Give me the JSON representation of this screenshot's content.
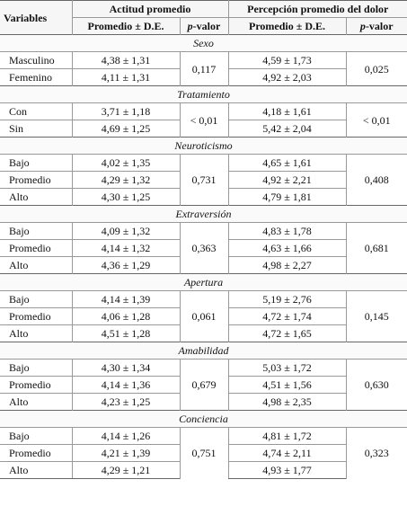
{
  "headers": {
    "variables": "Variables",
    "actitud": "Actitud promedio",
    "percepcion": "Percepción promedio del dolor",
    "promedio_de_1": "Promedio ± D.E.",
    "pvalor_1_p": "p",
    "pvalor_1_rest": "-valor",
    "promedio_de_2": "Promedio ± D.E.",
    "pvalor_2_p": "p",
    "pvalor_2_rest": "-valor"
  },
  "groups": [
    {
      "category": "Sexo",
      "p1": "0,117",
      "p2": "0,025",
      "rows": [
        {
          "label": "Masculino",
          "a": "4,38 ± 1,31",
          "b": "4,59 ± 1,73"
        },
        {
          "label": "Femenino",
          "a": "4,11 ± 1,31",
          "b": "4,92 ± 2,03"
        }
      ]
    },
    {
      "category": "Tratamiento",
      "p1": "< 0,01",
      "p2": "< 0,01",
      "rows": [
        {
          "label": "Con",
          "a": "3,71 ± 1,18",
          "b": "4,18 ± 1,61"
        },
        {
          "label": "Sin",
          "a": "4,69 ± 1,25",
          "b": "5,42 ± 2,04"
        }
      ]
    },
    {
      "category": "Neuroticismo",
      "p1": "0,731",
      "p2": "0,408",
      "rows": [
        {
          "label": "Bajo",
          "a": "4,02 ± 1,35",
          "b": "4,65 ± 1,61"
        },
        {
          "label": "Promedio",
          "a": "4,29 ± 1,32",
          "b": "4,92 ± 2,21"
        },
        {
          "label": "Alto",
          "a": "4,30 ± 1,25",
          "b": "4,79 ± 1,81"
        }
      ]
    },
    {
      "category": "Extraversión",
      "p1": "0,363",
      "p2": "0,681",
      "rows": [
        {
          "label": "Bajo",
          "a": "4,09 ± 1,32",
          "b": "4,83 ± 1,78"
        },
        {
          "label": "Promedio",
          "a": "4,14 ± 1,32",
          "b": "4,63 ± 1,66"
        },
        {
          "label": "Alto",
          "a": "4,36 ± 1,29",
          "b": "4,98 ± 2,27"
        }
      ]
    },
    {
      "category": "Apertura",
      "p1": "0,061",
      "p2": "0,145",
      "rows": [
        {
          "label": "Bajo",
          "a": "4,14 ± 1,39",
          "b": "5,19 ± 2,76"
        },
        {
          "label": "Promedio",
          "a": "4,06 ± 1,28",
          "b": "4,72 ± 1,74"
        },
        {
          "label": "Alto",
          "a": "4,51 ± 1,28",
          "b": "4,72 ± 1,65"
        }
      ]
    },
    {
      "category": "Amabilidad",
      "p1": "0,679",
      "p2": "0,630",
      "rows": [
        {
          "label": "Bajo",
          "a": "4,30 ± 1,34",
          "b": "5,03 ± 1,72"
        },
        {
          "label": "Promedio",
          "a": "4,14 ± 1,36",
          "b": "4,51 ± 1,56"
        },
        {
          "label": "Alto",
          "a": "4,23 ± 1,25",
          "b": "4,98 ± 2,35"
        }
      ]
    },
    {
      "category": "Conciencia",
      "p1": "0,751",
      "p2": "0,323",
      "rows": [
        {
          "label": "Bajo",
          "a": "4,14 ± 1,26",
          "b": "4,81 ± 1,72"
        },
        {
          "label": "Promedio",
          "a": "4,21 ± 1,39",
          "b": "4,74 ± 2,11"
        },
        {
          "label": "Alto",
          "a": "4,29 ± 1,21",
          "b": "4,93 ± 1,77"
        }
      ]
    }
  ]
}
